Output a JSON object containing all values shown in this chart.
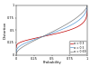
{
  "title": "",
  "xlabel": "Probability",
  "ylabel": "Distortion",
  "alphas": [
    0.3,
    0.5,
    0.69
  ],
  "colors": [
    "#c00000",
    "#5b9bd5",
    "#7f7f7f"
  ],
  "legend_labels": [
    "α = 0.3",
    "α = 0.5",
    "α = 0.69"
  ],
  "xlim": [
    0,
    1
  ],
  "ylim": [
    0,
    1
  ],
  "xticks": [
    0,
    0.25,
    0.5,
    0.75,
    1.0
  ],
  "yticks": [
    0,
    0.25,
    0.5,
    0.75,
    1.0
  ],
  "xtick_labels": [
    "0",
    "0.25",
    "0.5",
    "0.75",
    "1"
  ],
  "ytick_labels": [
    "0",
    "0.25",
    "0.5",
    "0.75",
    "1"
  ],
  "figsize": [
    1.0,
    0.74
  ],
  "dpi": 100
}
